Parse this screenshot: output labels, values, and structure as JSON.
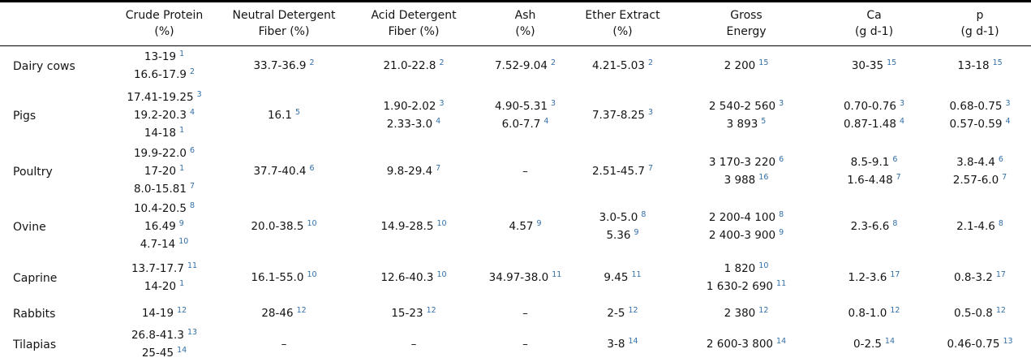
{
  "page": {
    "background": "#ffffff",
    "text_color": "#141414",
    "reference_superscript_color": "#336fa8"
  },
  "table": {
    "columns": [
      {
        "key": "animal",
        "header_line1": "",
        "header_line2": ""
      },
      {
        "key": "crude_protein",
        "header_line1": "Crude Protein",
        "header_line2": "(%)"
      },
      {
        "key": "ndf",
        "header_line1": "Neutral Detergent",
        "header_line2": "Fiber (%)"
      },
      {
        "key": "adf",
        "header_line1": "Acid Detergent",
        "header_line2": "Fiber (%)"
      },
      {
        "key": "ash",
        "header_line1": "Ash",
        "header_line2": "(%)"
      },
      {
        "key": "ether_extract",
        "header_line1": "Ether Extract",
        "header_line2": "(%)"
      },
      {
        "key": "gross_energy",
        "header_line1": "Gross",
        "header_line2": "Energy"
      },
      {
        "key": "ca",
        "header_line1": "Ca",
        "header_line2": "(g d-1)"
      },
      {
        "key": "p",
        "header_line1": "p",
        "header_line2": "(g d-1)"
      }
    ],
    "rows": [
      {
        "animal": "Dairy cows",
        "cells": {
          "crude_protein": [
            {
              "v": "13-19",
              "ref": "1"
            },
            {
              "v": "16.6-17.9",
              "ref": "2"
            }
          ],
          "ndf": [
            {
              "v": "33.7-36.9",
              "ref": "2"
            }
          ],
          "adf": [
            {
              "v": "21.0-22.8",
              "ref": "2"
            }
          ],
          "ash": [
            {
              "v": "7.52-9.04",
              "ref": "2"
            }
          ],
          "ether_extract": [
            {
              "v": "4.21-5.03",
              "ref": "2"
            }
          ],
          "gross_energy": [
            {
              "v": "2 200",
              "ref": "15"
            }
          ],
          "ca": [
            {
              "v": "30-35",
              "ref": "15"
            }
          ],
          "p": [
            {
              "v": "13-18",
              "ref": "15"
            }
          ]
        }
      },
      {
        "animal": "Pigs",
        "cells": {
          "crude_protein": [
            {
              "v": "17.41-19.25",
              "ref": "3"
            },
            {
              "v": "19.2-20.3",
              "ref": "4"
            },
            {
              "v": "14-18",
              "ref": "1"
            }
          ],
          "ndf": [
            {
              "v": "16.1",
              "ref": "5"
            }
          ],
          "adf": [
            {
              "v": "1.90-2.02",
              "ref": "3"
            },
            {
              "v": "2.33-3.0",
              "ref": "4"
            }
          ],
          "ash": [
            {
              "v": "4.90-5.31",
              "ref": "3"
            },
            {
              "v": "6.0-7.7",
              "ref": "4"
            }
          ],
          "ether_extract": [
            {
              "v": "7.37-8.25",
              "ref": "3"
            }
          ],
          "gross_energy": [
            {
              "v": "2 540-2 560",
              "ref": "3"
            },
            {
              "v": "3 893",
              "ref": "5"
            }
          ],
          "ca": [
            {
              "v": "0.70-0.76",
              "ref": "3"
            },
            {
              "v": "0.87-1.48",
              "ref": "4"
            }
          ],
          "p": [
            {
              "v": "0.68-0.75",
              "ref": "3"
            },
            {
              "v": "0.57-0.59",
              "ref": "4"
            }
          ]
        }
      },
      {
        "animal": "Poultry",
        "cells": {
          "crude_protein": [
            {
              "v": "19.9-22.0",
              "ref": "6"
            },
            {
              "v": "17-20",
              "ref": "1"
            },
            {
              "v": "8.0-15.81",
              "ref": "7"
            }
          ],
          "ndf": [
            {
              "v": "37.7-40.4",
              "ref": "6"
            }
          ],
          "adf": [
            {
              "v": "9.8-29.4",
              "ref": "7"
            }
          ],
          "ash": [
            {
              "v": "–"
            }
          ],
          "ether_extract": [
            {
              "v": "2.51-45.7",
              "ref": "7"
            }
          ],
          "gross_energy": [
            {
              "v": "3 170-3 220",
              "ref": "6"
            },
            {
              "v": "3 988",
              "ref": "16"
            }
          ],
          "ca": [
            {
              "v": "8.5-9.1",
              "ref": "6"
            },
            {
              "v": "1.6-4.48",
              "ref": "7"
            }
          ],
          "p": [
            {
              "v": "3.8-4.4",
              "ref": "6"
            },
            {
              "v": "2.57-6.0",
              "ref": "7"
            }
          ]
        }
      },
      {
        "animal": "Ovine",
        "cells": {
          "crude_protein": [
            {
              "v": "10.4-20.5",
              "ref": "8"
            },
            {
              "v": "16.49",
              "ref": "9"
            },
            {
              "v": "4.7-14",
              "ref": "10"
            }
          ],
          "ndf": [
            {
              "v": "20.0-38.5",
              "ref": "10"
            }
          ],
          "adf": [
            {
              "v": "14.9-28.5",
              "ref": "10"
            }
          ],
          "ash": [
            {
              "v": "4.57",
              "ref": "9"
            }
          ],
          "ether_extract": [
            {
              "v": "3.0-5.0",
              "ref": "8"
            },
            {
              "v": "5.36",
              "ref": "9"
            }
          ],
          "gross_energy": [
            {
              "v": "2 200-4 100",
              "ref": "8"
            },
            {
              "v": "2 400-3 900",
              "ref": "9"
            }
          ],
          "ca": [
            {
              "v": "2.3-6.6",
              "ref": "8"
            }
          ],
          "p": [
            {
              "v": "2.1-4.6",
              "ref": "8"
            }
          ]
        }
      },
      {
        "animal": "Caprine",
        "cells": {
          "crude_protein": [
            {
              "v": "13.7-17.7",
              "ref": "11"
            },
            {
              "v": "14-20",
              "ref": "1"
            }
          ],
          "ndf": [
            {
              "v": "16.1-55.0",
              "ref": "10"
            }
          ],
          "adf": [
            {
              "v": "12.6-40.3",
              "ref": "10"
            }
          ],
          "ash": [
            {
              "v": "34.97-38.0",
              "ref": "11"
            }
          ],
          "ether_extract": [
            {
              "v": "9.45",
              "ref": "11"
            }
          ],
          "gross_energy": [
            {
              "v": "1 820",
              "ref": "10"
            },
            {
              "v": "1 630-2 690",
              "ref": "11"
            }
          ],
          "ca": [
            {
              "v": "1.2-3.6",
              "ref": "17"
            }
          ],
          "p": [
            {
              "v": "0.8-3.2",
              "ref": "17"
            }
          ]
        }
      },
      {
        "animal": "Rabbits",
        "cells": {
          "crude_protein": [
            {
              "v": "14-19",
              "ref": "12"
            }
          ],
          "ndf": [
            {
              "v": "28-46",
              "ref": "12"
            }
          ],
          "adf": [
            {
              "v": "15-23",
              "ref": "12"
            }
          ],
          "ash": [
            {
              "v": "–"
            }
          ],
          "ether_extract": [
            {
              "v": "2-5",
              "ref": "12"
            }
          ],
          "gross_energy": [
            {
              "v": "2 380",
              "ref": "12"
            }
          ],
          "ca": [
            {
              "v": "0.8-1.0",
              "ref": "12"
            }
          ],
          "p": [
            {
              "v": "0.5-0.8",
              "ref": "12"
            }
          ]
        }
      },
      {
        "animal": "Tilapias",
        "cells": {
          "crude_protein": [
            {
              "v": "26.8-41.3",
              "ref": "13"
            },
            {
              "v": "25-45",
              "ref": "14"
            }
          ],
          "ndf": [
            {
              "v": "–"
            }
          ],
          "adf": [
            {
              "v": "–"
            }
          ],
          "ash": [
            {
              "v": "–"
            }
          ],
          "ether_extract": [
            {
              "v": "3-8",
              "ref": "14"
            }
          ],
          "gross_energy": [
            {
              "v": "2 600-3 800",
              "ref": "14"
            }
          ],
          "ca": [
            {
              "v": "0-2.5",
              "ref": "14"
            }
          ],
          "p": [
            {
              "v": "0.46-0.75",
              "ref": "13"
            }
          ]
        }
      }
    ]
  }
}
